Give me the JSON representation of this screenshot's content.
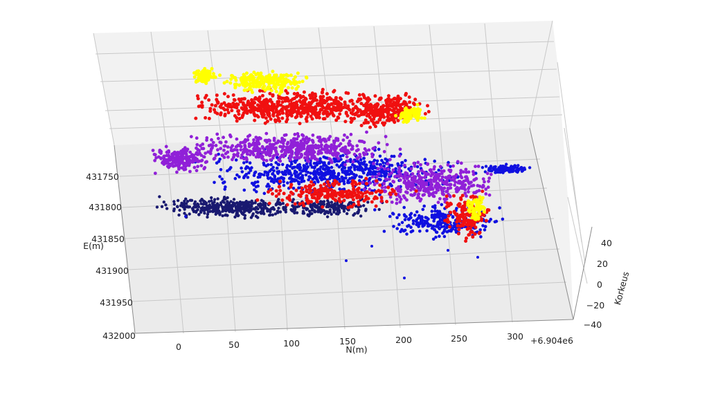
{
  "chart_data": {
    "type": "scatter",
    "title": "",
    "x_axis": {
      "label": "N(m)",
      "ticks": [
        "0",
        "50",
        "100",
        "150",
        "200",
        "250",
        "300"
      ],
      "offset_text": "+6.904e6",
      "range": [
        -30,
        340
      ]
    },
    "y_axis": {
      "label": "E(m)",
      "ticks": [
        "431750",
        "431800",
        "431850",
        "431900",
        "431950",
        "432000"
      ],
      "range": [
        431720,
        432000
      ]
    },
    "z_axis": {
      "label": "Korkeus",
      "ticks": [
        "40",
        "20",
        "0",
        "−20",
        "−40"
      ],
      "range": [
        -45,
        50
      ]
    },
    "grid": true,
    "legend": "none",
    "series_colors": {
      "lowest": "#191970",
      "low": "#1010e0",
      "mid": "#9020d8",
      "high": "#f01010",
      "highest": "#ffff00"
    }
  }
}
